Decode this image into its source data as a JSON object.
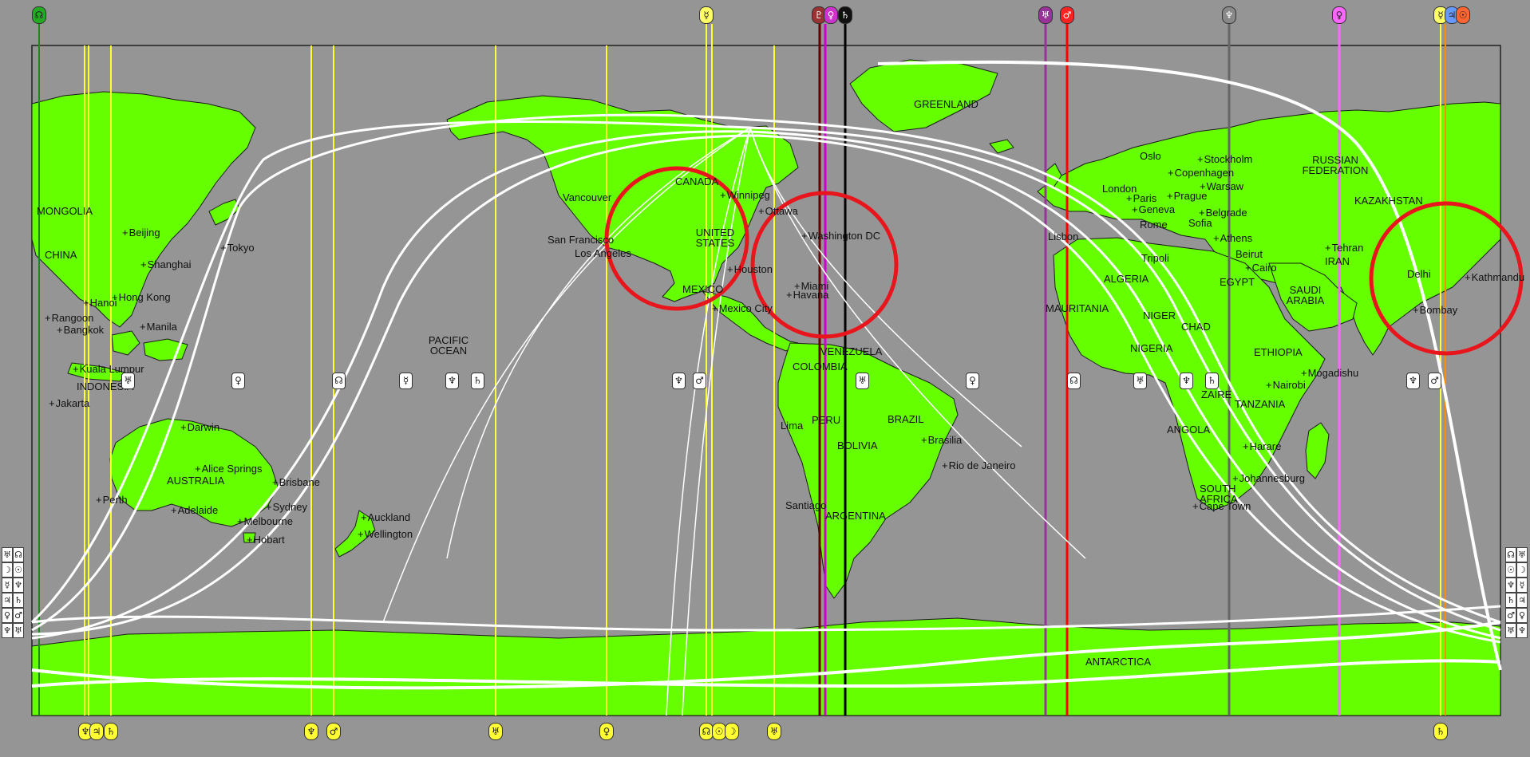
{
  "colors": {
    "background": "#959595",
    "land": "#66ff00",
    "ocean": "#959595",
    "curve": "#ffffff",
    "highlight_circle": "#e8161c",
    "line_sun": "#ffff33",
    "line_moon": "#ff33cc",
    "line_pluto": "#663366",
    "line_mars": "#ff0000",
    "line_saturn": "#111111",
    "line_neptune": "#7a7a7a",
    "line_venus": "#ff66ff",
    "line_uranus": "#993399"
  },
  "countries": [
    {
      "name": "GREENLAND"
    },
    {
      "name": "CANADA"
    },
    {
      "name": "UNITED STATES"
    },
    {
      "name": "MEXICO"
    },
    {
      "name": "MONGOLIA"
    },
    {
      "name": "CHINA"
    },
    {
      "name": "INDONESIA"
    },
    {
      "name": "AUSTRALIA"
    },
    {
      "name": "PACIFIC OCEAN"
    },
    {
      "name": "VENEZUELA"
    },
    {
      "name": "COLOMBIA"
    },
    {
      "name": "PERU"
    },
    {
      "name": "BRAZIL"
    },
    {
      "name": "BOLIVIA"
    },
    {
      "name": "ARGENTINA"
    },
    {
      "name": "RUSSIAN FEDERATION"
    },
    {
      "name": "KAZAKHSTAN"
    },
    {
      "name": "IRAN"
    },
    {
      "name": "ALGERIA"
    },
    {
      "name": "EGYPT"
    },
    {
      "name": "SAUDI ARABIA"
    },
    {
      "name": "MAURITANIA"
    },
    {
      "name": "NIGER"
    },
    {
      "name": "CHAD"
    },
    {
      "name": "NIGERIA"
    },
    {
      "name": "ETHIOPIA"
    },
    {
      "name": "ZAIRE"
    },
    {
      "name": "TANZANIA"
    },
    {
      "name": "ANGOLA"
    },
    {
      "name": "SOUTH AFRICA"
    },
    {
      "name": "ANTARCTICA"
    }
  ],
  "cities": [
    {
      "name": "Beijing"
    },
    {
      "name": "Tokyo"
    },
    {
      "name": "Shanghai"
    },
    {
      "name": "Hong Kong"
    },
    {
      "name": "Hanoi"
    },
    {
      "name": "Rangoon"
    },
    {
      "name": "Bangkok"
    },
    {
      "name": "Manila"
    },
    {
      "name": "Kuala Lumpur"
    },
    {
      "name": "Jakarta"
    },
    {
      "name": "Darwin"
    },
    {
      "name": "Alice Springs"
    },
    {
      "name": "Brisbane"
    },
    {
      "name": "Perth"
    },
    {
      "name": "Adelaide"
    },
    {
      "name": "Sydney"
    },
    {
      "name": "Melbourne"
    },
    {
      "name": "Hobart"
    },
    {
      "name": "Auckland"
    },
    {
      "name": "Wellington"
    },
    {
      "name": "Vancouver"
    },
    {
      "name": "San Francisco"
    },
    {
      "name": "Los Angeles"
    },
    {
      "name": "Winnipeg"
    },
    {
      "name": "Ottawa"
    },
    {
      "name": "Washington DC"
    },
    {
      "name": "Houston"
    },
    {
      "name": "Miami"
    },
    {
      "name": "Havana"
    },
    {
      "name": "Mexico City"
    },
    {
      "name": "Lima"
    },
    {
      "name": "Brasilia"
    },
    {
      "name": "Rio de Janeiro"
    },
    {
      "name": "Santiago"
    },
    {
      "name": "Oslo"
    },
    {
      "name": "Stockholm"
    },
    {
      "name": "London"
    },
    {
      "name": "Copenhagen"
    },
    {
      "name": "Warsaw"
    },
    {
      "name": "Paris"
    },
    {
      "name": "Prague"
    },
    {
      "name": "Geneva"
    },
    {
      "name": "Belgrade"
    },
    {
      "name": "Rome"
    },
    {
      "name": "Sofia"
    },
    {
      "name": "Athens"
    },
    {
      "name": "Lisbon"
    },
    {
      "name": "Tripoli"
    },
    {
      "name": "Beirut"
    },
    {
      "name": "Cairo"
    },
    {
      "name": "Tehran"
    },
    {
      "name": "Delhi"
    },
    {
      "name": "Bombay"
    },
    {
      "name": "Kathmandu"
    },
    {
      "name": "Nairobi"
    },
    {
      "name": "Mogadishu"
    },
    {
      "name": "Harare"
    },
    {
      "name": "Johannesburg"
    },
    {
      "name": "Cape Town"
    }
  ],
  "glyphs": {
    "sun": "☉",
    "moon": "☽",
    "mercury": "☿",
    "venus": "♀",
    "mars": "♂",
    "jupiter": "♃",
    "saturn": "♄",
    "uranus": "♅",
    "neptune": "♆",
    "pluto": "♇",
    "node": "☊",
    "mc": "M",
    "ic": "I"
  },
  "top_markers": [
    {
      "glyph": "☊"
    },
    {
      "glyph": "☿"
    },
    {
      "glyph": "♇"
    },
    {
      "glyph": "♀"
    },
    {
      "glyph": "♄"
    },
    {
      "glyph": "♅"
    },
    {
      "glyph": "♂"
    },
    {
      "glyph": "♆"
    },
    {
      "glyph": "♀"
    },
    {
      "glyph": "☿"
    },
    {
      "glyph": "♃"
    },
    {
      "glyph": "☉"
    }
  ],
  "equator_markers": [
    {
      "glyph": "♅"
    },
    {
      "glyph": "♀"
    },
    {
      "glyph": "☊"
    },
    {
      "glyph": "☿"
    },
    {
      "glyph": "♆"
    },
    {
      "glyph": "♄"
    },
    {
      "glyph": "♆"
    },
    {
      "glyph": "♂"
    },
    {
      "glyph": "♅"
    },
    {
      "glyph": "♀"
    },
    {
      "glyph": "☊"
    },
    {
      "glyph": "♅"
    },
    {
      "glyph": "♆"
    },
    {
      "glyph": "♄"
    },
    {
      "glyph": "♆"
    },
    {
      "glyph": "♂"
    }
  ],
  "bottom_markers": [
    {
      "glyph": "♆"
    },
    {
      "glyph": "♃"
    },
    {
      "glyph": "♄"
    },
    {
      "glyph": "♆"
    },
    {
      "glyph": "♂"
    },
    {
      "glyph": "♅"
    },
    {
      "glyph": "♀"
    },
    {
      "glyph": "☊"
    },
    {
      "glyph": "☉"
    },
    {
      "glyph": "☽"
    },
    {
      "glyph": "♅"
    },
    {
      "glyph": "♄"
    }
  ],
  "side_glyphs": [
    "♅",
    "☊",
    "☽",
    "☉",
    "☿",
    "♆",
    "♃",
    "♄",
    "♀",
    "♂",
    "♆"
  ]
}
